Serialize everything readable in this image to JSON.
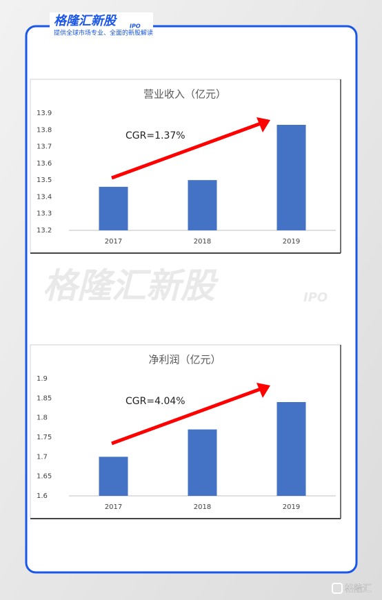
{
  "header": {
    "brand": "格隆汇新股",
    "tag": "IPO",
    "subtitle": "提供全球市场专业、全面的新股解读"
  },
  "watermark": {
    "brand": "格隆汇新股",
    "tag": "IPO"
  },
  "footer": {
    "logo": "格隆汇"
  },
  "chart_data": [
    {
      "type": "bar",
      "title": "营业收入（亿元）",
      "annotation": "CGR=1.37%",
      "categories": [
        "2017",
        "2018",
        "2019"
      ],
      "values": [
        13.46,
        13.5,
        13.83
      ],
      "color": "#4472c4",
      "ylim": [
        13.2,
        13.9
      ],
      "yticks": [
        13.2,
        13.3,
        13.4,
        13.5,
        13.6,
        13.7,
        13.8,
        13.9
      ],
      "grid": false
    },
    {
      "type": "bar",
      "title": "净利润（亿元）",
      "annotation": "CGR=4.04%",
      "categories": [
        "2017",
        "2018",
        "2019"
      ],
      "values": [
        1.7,
        1.77,
        1.84
      ],
      "color": "#4472c4",
      "ylim": [
        1.6,
        1.9
      ],
      "yticks": [
        1.6,
        1.65,
        1.7,
        1.75,
        1.8,
        1.85,
        1.9
      ],
      "grid": false
    }
  ]
}
